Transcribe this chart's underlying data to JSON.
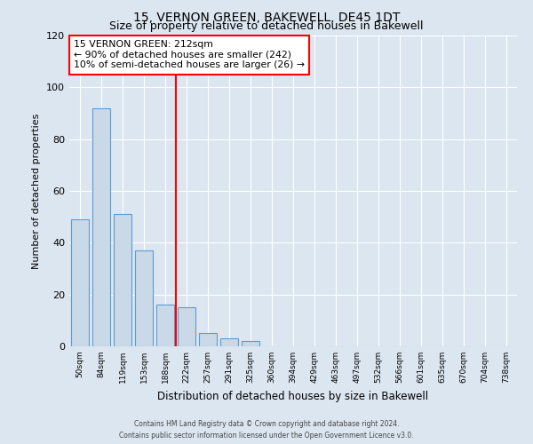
{
  "title": "15, VERNON GREEN, BAKEWELL, DE45 1DT",
  "subtitle": "Size of property relative to detached houses in Bakewell",
  "xlabel": "Distribution of detached houses by size in Bakewell",
  "ylabel": "Number of detached properties",
  "bar_labels": [
    "50sqm",
    "84sqm",
    "119sqm",
    "153sqm",
    "188sqm",
    "222sqm",
    "257sqm",
    "291sqm",
    "325sqm",
    "360sqm",
    "394sqm",
    "429sqm",
    "463sqm",
    "497sqm",
    "532sqm",
    "566sqm",
    "601sqm",
    "635sqm",
    "670sqm",
    "704sqm",
    "738sqm"
  ],
  "bar_values": [
    49,
    92,
    51,
    37,
    16,
    15,
    5,
    3,
    2,
    0,
    0,
    0,
    0,
    0,
    0,
    0,
    0,
    0,
    0,
    0,
    0
  ],
  "bar_color": "#c9d9e8",
  "bar_edge_color": "#5b9bd5",
  "vline_color": "red",
  "vline_index": 5,
  "annotation_line1": "15 VERNON GREEN: 212sqm",
  "annotation_line2": "← 90% of detached houses are smaller (242)",
  "annotation_line3": "10% of semi-detached houses are larger (26) →",
  "ylim": [
    0,
    120
  ],
  "yticks": [
    0,
    20,
    40,
    60,
    80,
    100,
    120
  ],
  "footer_line1": "Contains HM Land Registry data © Crown copyright and database right 2024.",
  "footer_line2": "Contains public sector information licensed under the Open Government Licence v3.0.",
  "background_color": "#dce6f0",
  "plot_bg_color": "#dce6f0",
  "grid_color": "#ffffff",
  "title_fontsize": 10,
  "subtitle_fontsize": 9
}
